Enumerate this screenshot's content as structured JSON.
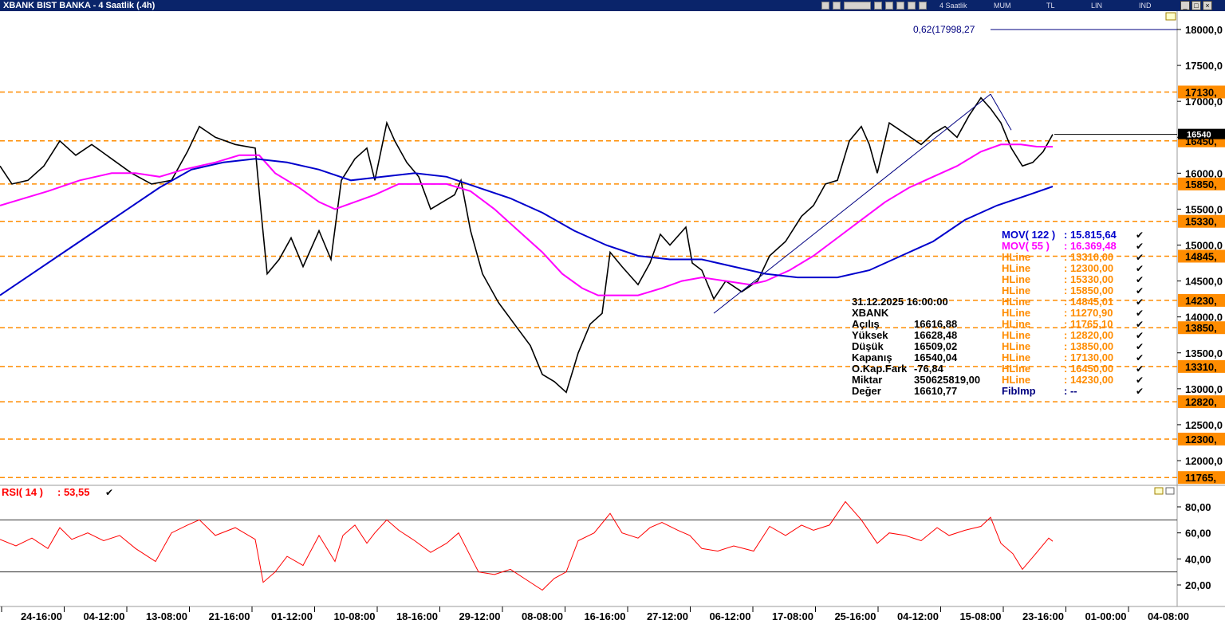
{
  "window": {
    "title": "XBANK BIST BANKA - 4 Saatlik (.4h)"
  },
  "toolbar": {
    "period": "4 Saatlik",
    "chart_style": "MUM",
    "currency": "TL",
    "scale": "LIN",
    "indicator_button": "IND"
  },
  "fib_label": "0,62(17998,27",
  "last_price_tag": "16540",
  "info_box": {
    "datetime": "31.12.2025  16:00:00",
    "symbol": "XBANK",
    "rows": [
      {
        "label": "Açılış",
        "value": "16616,88"
      },
      {
        "label": "Yüksek",
        "value": "16628,48"
      },
      {
        "label": "Düşük",
        "value": "16509,02"
      },
      {
        "label": "Kapanış",
        "value": "16540,04"
      },
      {
        "label": "O.Kap.Fark",
        "value": "-76,84"
      },
      {
        "label": "Miktar",
        "value": "350625819,00"
      },
      {
        "label": "Değer",
        "value": "16610,77"
      }
    ]
  },
  "legend": [
    {
      "name": "MOV( 122 )",
      "value": ": 15.815,64",
      "color": "#0000cc"
    },
    {
      "name": "MOV( 55 )",
      "value": ": 16.369,48",
      "color": "#ff00ff"
    },
    {
      "name": "HLine",
      "value": ": 13310,00",
      "color": "#ff8c00"
    },
    {
      "name": "HLine",
      "value": ": 12300,00",
      "color": "#ff8c00"
    },
    {
      "name": "HLine",
      "value": ": 15330,00",
      "color": "#ff8c00"
    },
    {
      "name": "HLine",
      "value": ": 15850,00",
      "color": "#ff8c00"
    },
    {
      "name": "HLine",
      "value": ": 14845,01",
      "color": "#ff8c00"
    },
    {
      "name": "HLine",
      "value": ": 11270,90",
      "color": "#ff8c00"
    },
    {
      "name": "HLine",
      "value": ": 11765,10",
      "color": "#ff8c00"
    },
    {
      "name": "HLine",
      "value": ": 12820,00",
      "color": "#ff8c00"
    },
    {
      "name": "HLine",
      "value": ": 13850,00",
      "color": "#ff8c00"
    },
    {
      "name": "HLine",
      "value": ": 17130,00",
      "color": "#ff8c00"
    },
    {
      "name": "HLine",
      "value": ": 16450,00",
      "color": "#ff8c00"
    },
    {
      "name": "HLine",
      "value": ": 14230,00",
      "color": "#ff8c00"
    },
    {
      "name": "FibImp",
      "value": ": --",
      "color": "#000080"
    }
  ],
  "rsi": {
    "label": "RSI( 14 )",
    "value": ": 53,55",
    "upper": 70,
    "lower": 30,
    "ticks": [
      80,
      60,
      40,
      20
    ],
    "tick_labels": [
      "80,00",
      "60,00",
      "40,00",
      "20,00"
    ]
  },
  "colors": {
    "bg": "#ffffff",
    "hline": "#ff8c00",
    "ma122": "#0000cc",
    "ma55": "#ff00ff",
    "trend": "#000080",
    "rsi": "#ff0000",
    "title_bar": "#0a246a"
  },
  "chart_data": {
    "type": "line",
    "title": "XBANK BIST BANKA - 4 Saatlik (.4h)",
    "y_ticks": [
      18000,
      17500,
      17000,
      16500,
      16000,
      15500,
      15000,
      14500,
      14000,
      13500,
      13000,
      12500,
      12000
    ],
    "y_tick_labels": [
      "18000,0",
      "17500,0",
      "17000,0",
      "16500,0",
      "16000,0",
      "15500,0",
      "15000,0",
      "14500,0",
      "14000,0",
      "13500,0",
      "13000,0",
      "12500,0",
      "12000,0"
    ],
    "ylim": [
      11700,
      18250
    ],
    "x_tick_labels": [
      "24-16:00",
      "04-12:00",
      "13-08:00",
      "21-16:00",
      "01-12:00",
      "10-08:00",
      "18-16:00",
      "29-12:00",
      "08-08:00",
      "16-16:00",
      "27-12:00",
      "06-12:00",
      "17-08:00",
      "25-16:00",
      "04-12:00",
      "15-08:00",
      "23-16:00",
      "01-00:00",
      "04-08:00"
    ],
    "hlines": [
      17130,
      16450,
      15850,
      15330,
      14845,
      14230,
      13850,
      13310,
      12820,
      12300,
      11765
    ],
    "hline_labels": [
      "17130,",
      "16450,",
      "15850,",
      "15330,",
      "14845,",
      "14230,",
      "13850,",
      "13310,",
      "12820,",
      "12300,",
      "11765,"
    ],
    "fib_level": 17998.27,
    "last_price": 16540.04,
    "price_path": [
      [
        0,
        16100
      ],
      [
        15,
        15850
      ],
      [
        35,
        15900
      ],
      [
        55,
        16100
      ],
      [
        75,
        16450
      ],
      [
        95,
        16250
      ],
      [
        115,
        16400
      ],
      [
        140,
        16200
      ],
      [
        165,
        16000
      ],
      [
        190,
        15850
      ],
      [
        215,
        15900
      ],
      [
        235,
        16300
      ],
      [
        250,
        16650
      ],
      [
        270,
        16500
      ],
      [
        295,
        16400
      ],
      [
        320,
        16350
      ],
      [
        327,
        15500
      ],
      [
        335,
        14600
      ],
      [
        350,
        14800
      ],
      [
        365,
        15100
      ],
      [
        380,
        14700
      ],
      [
        400,
        15200
      ],
      [
        415,
        14800
      ],
      [
        428,
        15900
      ],
      [
        445,
        16200
      ],
      [
        460,
        16350
      ],
      [
        470,
        15900
      ],
      [
        485,
        16700
      ],
      [
        495,
        16450
      ],
      [
        510,
        16150
      ],
      [
        525,
        15950
      ],
      [
        540,
        15500
      ],
      [
        555,
        15600
      ],
      [
        570,
        15700
      ],
      [
        578,
        15900
      ],
      [
        590,
        15200
      ],
      [
        605,
        14600
      ],
      [
        625,
        14200
      ],
      [
        645,
        13900
      ],
      [
        665,
        13600
      ],
      [
        680,
        13200
      ],
      [
        695,
        13100
      ],
      [
        710,
        12950
      ],
      [
        725,
        13500
      ],
      [
        740,
        13900
      ],
      [
        755,
        14050
      ],
      [
        765,
        14900
      ],
      [
        780,
        14700
      ],
      [
        800,
        14450
      ],
      [
        815,
        14750
      ],
      [
        828,
        15150
      ],
      [
        840,
        15000
      ],
      [
        860,
        15250
      ],
      [
        868,
        14750
      ],
      [
        880,
        14650
      ],
      [
        895,
        14250
      ],
      [
        910,
        14500
      ],
      [
        930,
        14350
      ],
      [
        950,
        14500
      ],
      [
        965,
        14850
      ],
      [
        985,
        15050
      ],
      [
        1005,
        15400
      ],
      [
        1020,
        15550
      ],
      [
        1035,
        15850
      ],
      [
        1050,
        15900
      ],
      [
        1065,
        16450
      ],
      [
        1080,
        16650
      ],
      [
        1090,
        16400
      ],
      [
        1100,
        16000
      ],
      [
        1115,
        16700
      ],
      [
        1135,
        16550
      ],
      [
        1155,
        16400
      ],
      [
        1170,
        16550
      ],
      [
        1185,
        16650
      ],
      [
        1200,
        16500
      ],
      [
        1215,
        16800
      ],
      [
        1230,
        17050
      ],
      [
        1242,
        16900
      ],
      [
        1255,
        16700
      ],
      [
        1268,
        16350
      ],
      [
        1282,
        16100
      ],
      [
        1295,
        16150
      ],
      [
        1308,
        16300
      ],
      [
        1320,
        16540
      ]
    ],
    "ma55_path": [
      [
        0,
        15550
      ],
      [
        60,
        15750
      ],
      [
        100,
        15900
      ],
      [
        140,
        16000
      ],
      [
        170,
        16000
      ],
      [
        200,
        15950
      ],
      [
        230,
        16050
      ],
      [
        270,
        16150
      ],
      [
        300,
        16250
      ],
      [
        325,
        16250
      ],
      [
        345,
        16000
      ],
      [
        375,
        15800
      ],
      [
        400,
        15600
      ],
      [
        420,
        15500
      ],
      [
        445,
        15600
      ],
      [
        470,
        15700
      ],
      [
        500,
        15850
      ],
      [
        530,
        15850
      ],
      [
        560,
        15850
      ],
      [
        590,
        15750
      ],
      [
        620,
        15500
      ],
      [
        650,
        15200
      ],
      [
        680,
        14900
      ],
      [
        705,
        14600
      ],
      [
        730,
        14400
      ],
      [
        750,
        14300
      ],
      [
        770,
        14300
      ],
      [
        800,
        14300
      ],
      [
        830,
        14400
      ],
      [
        855,
        14500
      ],
      [
        880,
        14550
      ],
      [
        910,
        14500
      ],
      [
        940,
        14450
      ],
      [
        960,
        14500
      ],
      [
        990,
        14650
      ],
      [
        1020,
        14850
      ],
      [
        1050,
        15100
      ],
      [
        1080,
        15350
      ],
      [
        1110,
        15600
      ],
      [
        1140,
        15800
      ],
      [
        1170,
        15950
      ],
      [
        1200,
        16100
      ],
      [
        1230,
        16300
      ],
      [
        1255,
        16400
      ],
      [
        1280,
        16400
      ],
      [
        1300,
        16370
      ],
      [
        1320,
        16369
      ]
    ],
    "ma122_path": [
      [
        0,
        14300
      ],
      [
        40,
        14600
      ],
      [
        80,
        14900
      ],
      [
        120,
        15200
      ],
      [
        160,
        15500
      ],
      [
        200,
        15800
      ],
      [
        240,
        16050
      ],
      [
        280,
        16150
      ],
      [
        320,
        16200
      ],
      [
        360,
        16150
      ],
      [
        400,
        16050
      ],
      [
        440,
        15900
      ],
      [
        480,
        15950
      ],
      [
        520,
        16000
      ],
      [
        560,
        15950
      ],
      [
        600,
        15800
      ],
      [
        640,
        15650
      ],
      [
        680,
        15450
      ],
      [
        720,
        15200
      ],
      [
        760,
        15000
      ],
      [
        800,
        14850
      ],
      [
        840,
        14800
      ],
      [
        880,
        14800
      ],
      [
        920,
        14700
      ],
      [
        960,
        14600
      ],
      [
        1000,
        14550
      ],
      [
        1050,
        14550
      ],
      [
        1090,
        14650
      ],
      [
        1130,
        14850
      ],
      [
        1170,
        15050
      ],
      [
        1210,
        15350
      ],
      [
        1250,
        15550
      ],
      [
        1290,
        15700
      ],
      [
        1320,
        15815
      ]
    ],
    "trendlines": [
      [
        [
          895,
          14050
        ],
        [
          1242,
          17100
        ]
      ],
      [
        [
          1242,
          17100
        ],
        [
          1268,
          16600
        ]
      ]
    ],
    "rsi_path": [
      [
        0,
        55
      ],
      [
        20,
        50
      ],
      [
        40,
        56
      ],
      [
        60,
        48
      ],
      [
        75,
        64
      ],
      [
        90,
        55
      ],
      [
        110,
        60
      ],
      [
        130,
        54
      ],
      [
        150,
        58
      ],
      [
        170,
        48
      ],
      [
        195,
        38
      ],
      [
        215,
        60
      ],
      [
        235,
        66
      ],
      [
        250,
        70
      ],
      [
        270,
        58
      ],
      [
        295,
        64
      ],
      [
        320,
        55
      ],
      [
        330,
        22
      ],
      [
        345,
        30
      ],
      [
        360,
        42
      ],
      [
        380,
        35
      ],
      [
        400,
        58
      ],
      [
        420,
        38
      ],
      [
        430,
        58
      ],
      [
        445,
        66
      ],
      [
        460,
        52
      ],
      [
        470,
        60
      ],
      [
        485,
        70
      ],
      [
        500,
        62
      ],
      [
        520,
        54
      ],
      [
        540,
        45
      ],
      [
        560,
        52
      ],
      [
        575,
        60
      ],
      [
        585,
        48
      ],
      [
        600,
        30
      ],
      [
        620,
        28
      ],
      [
        640,
        32
      ],
      [
        660,
        24
      ],
      [
        680,
        16
      ],
      [
        695,
        25
      ],
      [
        710,
        30
      ],
      [
        725,
        54
      ],
      [
        745,
        60
      ],
      [
        765,
        75
      ],
      [
        780,
        60
      ],
      [
        800,
        56
      ],
      [
        815,
        64
      ],
      [
        830,
        68
      ],
      [
        850,
        62
      ],
      [
        865,
        58
      ],
      [
        880,
        48
      ],
      [
        900,
        46
      ],
      [
        920,
        50
      ],
      [
        945,
        46
      ],
      [
        965,
        65
      ],
      [
        985,
        58
      ],
      [
        1005,
        66
      ],
      [
        1020,
        62
      ],
      [
        1040,
        66
      ],
      [
        1060,
        84
      ],
      [
        1080,
        70
      ],
      [
        1100,
        52
      ],
      [
        1115,
        60
      ],
      [
        1135,
        58
      ],
      [
        1155,
        54
      ],
      [
        1175,
        64
      ],
      [
        1190,
        58
      ],
      [
        1210,
        62
      ],
      [
        1230,
        65
      ],
      [
        1242,
        72
      ],
      [
        1255,
        52
      ],
      [
        1270,
        44
      ],
      [
        1282,
        32
      ],
      [
        1300,
        45
      ],
      [
        1315,
        56
      ],
      [
        1320,
        53.55
      ]
    ]
  }
}
